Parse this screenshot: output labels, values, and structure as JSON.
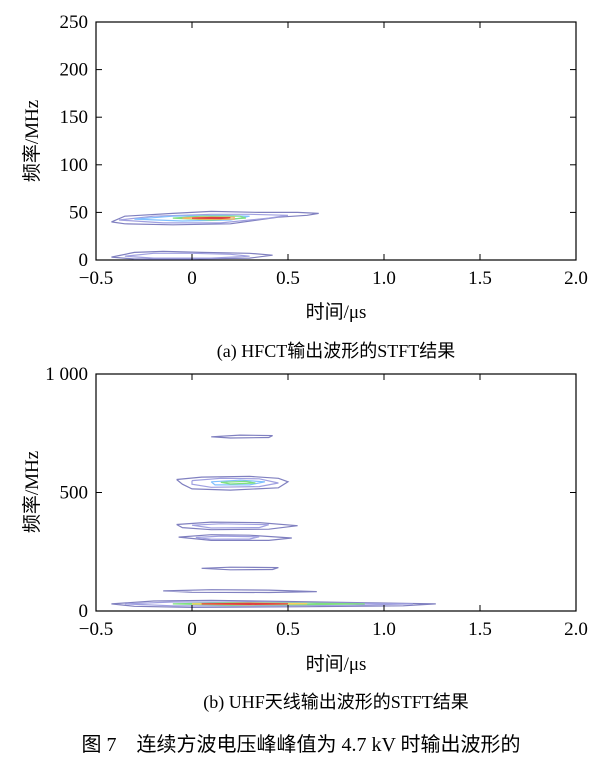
{
  "chart_data": [
    {
      "type": "heatmap",
      "subplot_caption": "(a) HFCT输出波形的STFT结果",
      "xlabel": "时间/μs",
      "ylabel": "频率/MHz",
      "xlim": [
        -0.5,
        2.0
      ],
      "ylim": [
        0,
        250
      ],
      "xticks": [
        "−0.5",
        "0",
        "0.5",
        "1.0",
        "1.5",
        "2.0"
      ],
      "xtick_values": [
        -0.5,
        0,
        0.5,
        1.0,
        1.5,
        2.0
      ],
      "yticks": [
        "0",
        "50",
        "100",
        "150",
        "200",
        "250"
      ],
      "ytick_values": [
        0,
        50,
        100,
        150,
        200,
        250
      ],
      "grid": false,
      "contours": [
        {
          "color": "#8080c0",
          "points": [
            [
              -0.42,
              40
            ],
            [
              -0.35,
              46
            ],
            [
              -0.1,
              49
            ],
            [
              0.1,
              51
            ],
            [
              0.35,
              50
            ],
            [
              0.55,
              50
            ],
            [
              0.66,
              49
            ],
            [
              0.6,
              47
            ],
            [
              0.45,
              45
            ],
            [
              0.2,
              38
            ],
            [
              -0.1,
              37
            ],
            [
              -0.35,
              38
            ],
            [
              -0.42,
              40
            ]
          ]
        },
        {
          "color": "#a0a0e0",
          "points": [
            [
              -0.38,
              42
            ],
            [
              -0.2,
              46
            ],
            [
              0.1,
              48
            ],
            [
              0.3,
              48
            ],
            [
              0.5,
              47
            ],
            [
              0.4,
              44
            ],
            [
              0.15,
              39
            ],
            [
              -0.15,
              39
            ],
            [
              -0.38,
              42
            ]
          ]
        },
        {
          "color": "#80c0ff",
          "points": [
            [
              -0.3,
              43
            ],
            [
              -0.1,
              46
            ],
            [
              0.15,
              47
            ],
            [
              0.3,
              46
            ],
            [
              0.2,
              42
            ],
            [
              -0.05,
              41
            ],
            [
              -0.3,
              43
            ]
          ]
        },
        {
          "color": "#80e080",
          "points": [
            [
              -0.1,
              44
            ],
            [
              0.05,
              46
            ],
            [
              0.25,
              46
            ],
            [
              0.28,
              44
            ],
            [
              0.1,
              42
            ],
            [
              -0.1,
              44
            ]
          ]
        },
        {
          "color": "#ffb060",
          "points": [
            [
              -0.05,
              44
            ],
            [
              0.05,
              45
            ],
            [
              0.22,
              45
            ],
            [
              0.22,
              43
            ],
            [
              0.05,
              43
            ],
            [
              -0.05,
              44
            ]
          ]
        },
        {
          "color": "#e04040",
          "points": [
            [
              0.0,
              44
            ],
            [
              0.1,
              44.6
            ],
            [
              0.2,
              44.4
            ],
            [
              0.15,
              43.6
            ],
            [
              0.0,
              44
            ]
          ]
        },
        {
          "color": "#8080c0",
          "points": [
            [
              -0.42,
              3
            ],
            [
              -0.3,
              8
            ],
            [
              -0.15,
              9
            ],
            [
              0.05,
              8
            ],
            [
              0.3,
              7
            ],
            [
              0.42,
              5
            ],
            [
              0.3,
              2
            ],
            [
              0.0,
              1
            ],
            [
              -0.3,
              1
            ],
            [
              -0.42,
              3
            ]
          ]
        },
        {
          "color": "#a0a0e0",
          "points": [
            [
              -0.35,
              4
            ],
            [
              -0.2,
              7
            ],
            [
              0.0,
              7
            ],
            [
              0.2,
              6
            ],
            [
              0.3,
              4
            ],
            [
              0.1,
              2
            ],
            [
              -0.2,
              2
            ],
            [
              -0.35,
              4
            ]
          ]
        }
      ]
    },
    {
      "type": "heatmap",
      "subplot_caption": "(b) UHF天线输出波形的STFT结果",
      "xlabel": "时间/μs",
      "ylabel": "频率/MHz",
      "xlim": [
        -0.5,
        2.0
      ],
      "ylim": [
        0,
        1000
      ],
      "xticks": [
        "−0.5",
        "0",
        "0.5",
        "1.0",
        "1.5",
        "2.0"
      ],
      "xtick_values": [
        -0.5,
        0,
        0.5,
        1.0,
        1.5,
        2.0
      ],
      "yticks": [
        "0",
        "500",
        "1 000"
      ],
      "ytick_values": [
        0,
        500,
        1000
      ],
      "grid": false,
      "contours": [
        {
          "color": "#8080c0",
          "points": [
            [
              0.1,
              735
            ],
            [
              0.25,
              742
            ],
            [
              0.42,
              740
            ],
            [
              0.4,
              732
            ],
            [
              0.2,
              730
            ],
            [
              0.1,
              735
            ]
          ]
        },
        {
          "color": "#8080c0",
          "points": [
            [
              -0.08,
              555
            ],
            [
              0.05,
              565
            ],
            [
              0.3,
              568
            ],
            [
              0.45,
              560
            ],
            [
              0.5,
              545
            ],
            [
              0.45,
              520
            ],
            [
              0.2,
              510
            ],
            [
              0.0,
              515
            ],
            [
              -0.05,
              535
            ],
            [
              -0.08,
              555
            ]
          ]
        },
        {
          "color": "#a0a0e0",
          "points": [
            [
              0.0,
              550
            ],
            [
              0.15,
              560
            ],
            [
              0.35,
              558
            ],
            [
              0.45,
              540
            ],
            [
              0.35,
              525
            ],
            [
              0.1,
              522
            ],
            [
              0.0,
              535
            ],
            [
              0.0,
              550
            ]
          ]
        },
        {
          "color": "#80c0ff",
          "points": [
            [
              0.1,
              545
            ],
            [
              0.25,
              552
            ],
            [
              0.38,
              545
            ],
            [
              0.3,
              532
            ],
            [
              0.12,
              532
            ],
            [
              0.1,
              545
            ]
          ]
        },
        {
          "color": "#80e080",
          "points": [
            [
              0.15,
              543
            ],
            [
              0.28,
              547
            ],
            [
              0.33,
              540
            ],
            [
              0.2,
              536
            ],
            [
              0.15,
              543
            ]
          ]
        },
        {
          "color": "#8080c0",
          "points": [
            [
              -0.08,
              365
            ],
            [
              0.1,
              375
            ],
            [
              0.35,
              373
            ],
            [
              0.55,
              360
            ],
            [
              0.4,
              345
            ],
            [
              0.1,
              343
            ],
            [
              -0.05,
              352
            ],
            [
              -0.08,
              365
            ]
          ]
        },
        {
          "color": "#a0a0e0",
          "points": [
            [
              0.0,
              362
            ],
            [
              0.15,
              368
            ],
            [
              0.4,
              364
            ],
            [
              0.35,
              352
            ],
            [
              0.1,
              350
            ],
            [
              0.0,
              362
            ]
          ]
        },
        {
          "color": "#8080c0",
          "points": [
            [
              -0.07,
              312
            ],
            [
              0.1,
              322
            ],
            [
              0.3,
              320
            ],
            [
              0.52,
              308
            ],
            [
              0.4,
              298
            ],
            [
              0.1,
              298
            ],
            [
              -0.07,
              312
            ]
          ]
        },
        {
          "color": "#a0a0e0",
          "points": [
            [
              0.02,
              310
            ],
            [
              0.15,
              316
            ],
            [
              0.35,
              313
            ],
            [
              0.3,
              304
            ],
            [
              0.1,
              303
            ],
            [
              0.02,
              310
            ]
          ]
        },
        {
          "color": "#8080c0",
          "points": [
            [
              0.05,
              180
            ],
            [
              0.2,
              185
            ],
            [
              0.45,
              183
            ],
            [
              0.42,
              175
            ],
            [
              0.2,
              174
            ],
            [
              0.05,
              180
            ]
          ]
        },
        {
          "color": "#8080c0",
          "points": [
            [
              -0.15,
              85
            ],
            [
              0.1,
              90
            ],
            [
              0.4,
              88
            ],
            [
              0.65,
              82
            ],
            [
              0.4,
              78
            ],
            [
              0.0,
              79
            ],
            [
              -0.15,
              85
            ]
          ]
        },
        {
          "color": "#8080c0",
          "points": [
            [
              -0.42,
              30
            ],
            [
              -0.2,
              42
            ],
            [
              0.1,
              45
            ],
            [
              0.5,
              40
            ],
            [
              0.9,
              35
            ],
            [
              1.27,
              30
            ],
            [
              1.1,
              22
            ],
            [
              0.6,
              18
            ],
            [
              0.0,
              15
            ],
            [
              -0.3,
              20
            ],
            [
              -0.42,
              30
            ]
          ]
        },
        {
          "color": "#a0a0e0",
          "points": [
            [
              -0.35,
              30
            ],
            [
              -0.1,
              38
            ],
            [
              0.3,
              38
            ],
            [
              0.8,
              33
            ],
            [
              1.15,
              30
            ],
            [
              0.8,
              24
            ],
            [
              0.3,
              22
            ],
            [
              -0.1,
              22
            ],
            [
              -0.35,
              30
            ]
          ]
        },
        {
          "color": "#80e080",
          "points": [
            [
              -0.1,
              30
            ],
            [
              0.2,
              35
            ],
            [
              0.6,
              33
            ],
            [
              0.9,
              30
            ],
            [
              0.6,
              27
            ],
            [
              0.2,
              25
            ],
            [
              -0.1,
              30
            ]
          ]
        },
        {
          "color": "#ffd060",
          "points": [
            [
              0.0,
              30
            ],
            [
              0.3,
              33
            ],
            [
              0.6,
              31
            ],
            [
              0.3,
              27
            ],
            [
              0.0,
              30
            ]
          ]
        },
        {
          "color": "#e04040",
          "points": [
            [
              0.05,
              30
            ],
            [
              0.3,
              32
            ],
            [
              0.5,
              30
            ],
            [
              0.3,
              28
            ],
            [
              0.05,
              30
            ]
          ]
        }
      ]
    }
  ],
  "figure_caption": "图 7    连续方波电压峰峰值为 4.7 kV 时输出波形的"
}
